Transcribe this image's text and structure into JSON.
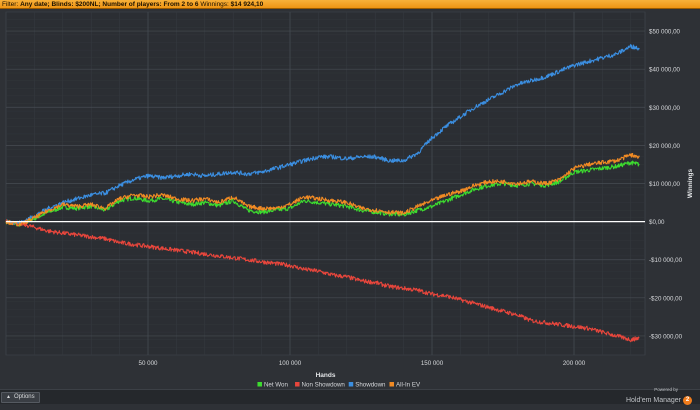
{
  "filter": {
    "prefix": "Filter:",
    "text": "Any date; Blinds: $200NL; Number of players: From 2 to 6",
    "winnings_label": "Winnings:",
    "winnings_value": "$14 924,10"
  },
  "footer": {
    "options_label": "Options",
    "powered_by": "Powered by",
    "brand_name": "Hold'em Manager",
    "brand_badge": "2"
  },
  "colors": {
    "background": "#2e3136",
    "grid": "#3f444b",
    "zero_line": "#ffffff",
    "net_won": "#3ddc2f",
    "non_showdown": "#e8463c",
    "showdown": "#3b8ee0",
    "all_in_ev": "#f08a24"
  },
  "chart_data": {
    "type": "line",
    "xlabel": "Hands",
    "ylabel": "Winnings",
    "xlim": [
      0,
      225000
    ],
    "ylim": [
      -35000,
      55000
    ],
    "x_ticks": [
      50000,
      100000,
      150000,
      200000
    ],
    "x_tick_labels": [
      "50 000",
      "100 000",
      "150 000",
      "200 000"
    ],
    "y_ticks": [
      -30000,
      -20000,
      -10000,
      0,
      10000,
      20000,
      30000,
      40000,
      50000
    ],
    "y_tick_labels": [
      "-$30 000,00",
      "-$20 000,00",
      "-$10 000,00",
      "$0,00",
      "$10 000,00",
      "$20 000,00",
      "$30 000,00",
      "$40 000,00",
      "$50 000,00"
    ],
    "grid": true,
    "legend_position": "bottom",
    "series": [
      {
        "name": "Net Won",
        "color": "#3ddc2f",
        "points": [
          [
            0,
            0
          ],
          [
            5000,
            -800
          ],
          [
            10000,
            800
          ],
          [
            15000,
            2500
          ],
          [
            20000,
            3800
          ],
          [
            25000,
            3500
          ],
          [
            30000,
            4000
          ],
          [
            35000,
            3000
          ],
          [
            40000,
            5500
          ],
          [
            45000,
            6200
          ],
          [
            50000,
            5500
          ],
          [
            55000,
            6000
          ],
          [
            60000,
            5200
          ],
          [
            65000,
            4500
          ],
          [
            70000,
            5000
          ],
          [
            75000,
            4200
          ],
          [
            80000,
            5500
          ],
          [
            85000,
            3000
          ],
          [
            90000,
            2500
          ],
          [
            95000,
            3000
          ],
          [
            100000,
            3500
          ],
          [
            105000,
            5500
          ],
          [
            110000,
            5000
          ],
          [
            115000,
            4500
          ],
          [
            120000,
            4000
          ],
          [
            125000,
            3000
          ],
          [
            130000,
            2500
          ],
          [
            135000,
            2000
          ],
          [
            140000,
            1800
          ],
          [
            145000,
            3000
          ],
          [
            150000,
            4000
          ],
          [
            155000,
            5500
          ],
          [
            160000,
            7000
          ],
          [
            165000,
            8500
          ],
          [
            170000,
            9500
          ],
          [
            175000,
            10000
          ],
          [
            180000,
            9500
          ],
          [
            185000,
            10000
          ],
          [
            190000,
            9500
          ],
          [
            195000,
            10500
          ],
          [
            200000,
            13000
          ],
          [
            205000,
            13500
          ],
          [
            210000,
            14000
          ],
          [
            215000,
            14500
          ],
          [
            220000,
            15500
          ],
          [
            223000,
            15000
          ]
        ]
      },
      {
        "name": "Non Showdown",
        "color": "#e8463c",
        "points": [
          [
            0,
            0
          ],
          [
            5000,
            -500
          ],
          [
            10000,
            -1500
          ],
          [
            15000,
            -2500
          ],
          [
            20000,
            -3000
          ],
          [
            25000,
            -3500
          ],
          [
            30000,
            -4000
          ],
          [
            35000,
            -4500
          ],
          [
            40000,
            -5500
          ],
          [
            45000,
            -6000
          ],
          [
            50000,
            -6500
          ],
          [
            55000,
            -7000
          ],
          [
            60000,
            -7500
          ],
          [
            65000,
            -8000
          ],
          [
            70000,
            -8500
          ],
          [
            75000,
            -9000
          ],
          [
            80000,
            -9500
          ],
          [
            85000,
            -10000
          ],
          [
            90000,
            -10500
          ],
          [
            95000,
            -11000
          ],
          [
            100000,
            -11500
          ],
          [
            105000,
            -12500
          ],
          [
            110000,
            -13000
          ],
          [
            115000,
            -14000
          ],
          [
            120000,
            -14500
          ],
          [
            125000,
            -15500
          ],
          [
            130000,
            -16000
          ],
          [
            135000,
            -17000
          ],
          [
            140000,
            -17500
          ],
          [
            145000,
            -18000
          ],
          [
            150000,
            -19000
          ],
          [
            155000,
            -19500
          ],
          [
            160000,
            -20500
          ],
          [
            165000,
            -21500
          ],
          [
            170000,
            -22500
          ],
          [
            175000,
            -23500
          ],
          [
            180000,
            -24500
          ],
          [
            185000,
            -26000
          ],
          [
            190000,
            -26500
          ],
          [
            195000,
            -27000
          ],
          [
            200000,
            -27500
          ],
          [
            205000,
            -28000
          ],
          [
            210000,
            -29000
          ],
          [
            215000,
            -30000
          ],
          [
            220000,
            -31000
          ],
          [
            223000,
            -30500
          ]
        ]
      },
      {
        "name": "Showdown",
        "color": "#3b8ee0",
        "points": [
          [
            0,
            0
          ],
          [
            5000,
            -300
          ],
          [
            10000,
            1500
          ],
          [
            15000,
            3500
          ],
          [
            20000,
            5000
          ],
          [
            25000,
            6000
          ],
          [
            30000,
            7000
          ],
          [
            35000,
            7500
          ],
          [
            40000,
            9500
          ],
          [
            45000,
            11000
          ],
          [
            50000,
            12000
          ],
          [
            55000,
            11500
          ],
          [
            60000,
            12000
          ],
          [
            65000,
            12500
          ],
          [
            70000,
            12000
          ],
          [
            75000,
            12500
          ],
          [
            80000,
            13000
          ],
          [
            85000,
            12500
          ],
          [
            90000,
            13000
          ],
          [
            95000,
            14000
          ],
          [
            100000,
            15000
          ],
          [
            105000,
            16000
          ],
          [
            110000,
            17000
          ],
          [
            115000,
            17000
          ],
          [
            120000,
            16500
          ],
          [
            125000,
            17000
          ],
          [
            130000,
            17000
          ],
          [
            135000,
            16000
          ],
          [
            140000,
            16000
          ],
          [
            145000,
            18000
          ],
          [
            150000,
            22000
          ],
          [
            155000,
            25000
          ],
          [
            160000,
            27500
          ],
          [
            165000,
            30000
          ],
          [
            170000,
            32000
          ],
          [
            175000,
            34000
          ],
          [
            180000,
            36000
          ],
          [
            185000,
            37000
          ],
          [
            190000,
            38000
          ],
          [
            195000,
            39500
          ],
          [
            200000,
            41000
          ],
          [
            205000,
            42000
          ],
          [
            210000,
            43000
          ],
          [
            215000,
            44000
          ],
          [
            220000,
            46000
          ],
          [
            223000,
            45500
          ]
        ]
      },
      {
        "name": "All-In EV",
        "color": "#f08a24",
        "points": [
          [
            0,
            0
          ],
          [
            5000,
            -800
          ],
          [
            10000,
            1000
          ],
          [
            15000,
            3000
          ],
          [
            20000,
            4500
          ],
          [
            25000,
            4000
          ],
          [
            30000,
            4500
          ],
          [
            35000,
            3500
          ],
          [
            40000,
            6000
          ],
          [
            45000,
            7000
          ],
          [
            50000,
            6500
          ],
          [
            55000,
            7000
          ],
          [
            60000,
            6000
          ],
          [
            65000,
            5500
          ],
          [
            70000,
            6000
          ],
          [
            75000,
            5000
          ],
          [
            80000,
            6500
          ],
          [
            85000,
            4000
          ],
          [
            90000,
            3500
          ],
          [
            95000,
            3500
          ],
          [
            100000,
            4500
          ],
          [
            105000,
            6500
          ],
          [
            110000,
            6000
          ],
          [
            115000,
            5500
          ],
          [
            120000,
            5000
          ],
          [
            125000,
            3500
          ],
          [
            130000,
            3000
          ],
          [
            135000,
            2500
          ],
          [
            140000,
            2200
          ],
          [
            145000,
            4000
          ],
          [
            150000,
            5500
          ],
          [
            155000,
            7000
          ],
          [
            160000,
            8000
          ],
          [
            165000,
            9500
          ],
          [
            170000,
            10500
          ],
          [
            175000,
            10500
          ],
          [
            180000,
            10000
          ],
          [
            185000,
            10500
          ],
          [
            190000,
            10000
          ],
          [
            195000,
            11000
          ],
          [
            200000,
            14000
          ],
          [
            205000,
            15000
          ],
          [
            210000,
            15500
          ],
          [
            215000,
            16000
          ],
          [
            220000,
            17500
          ],
          [
            223000,
            17000
          ]
        ]
      }
    ]
  }
}
